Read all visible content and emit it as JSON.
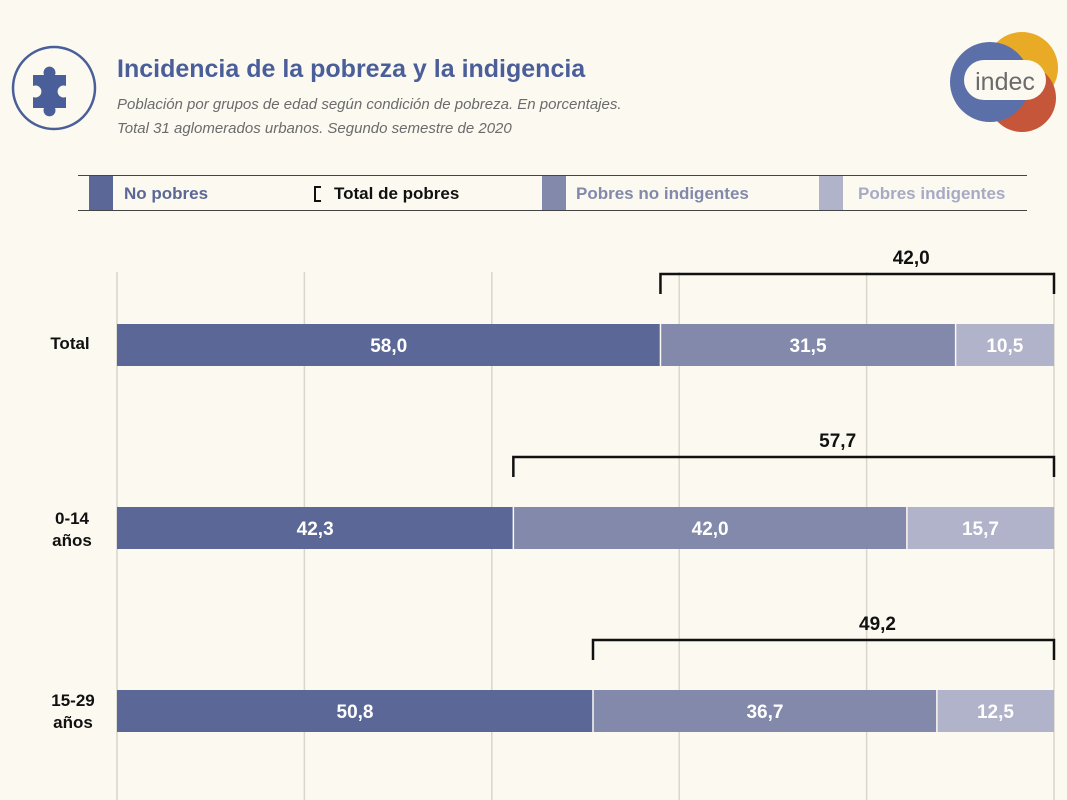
{
  "header": {
    "title": "Incidencia de la pobreza y la indigencia",
    "subtitle_lines": [
      "Población por grupos de edad según condición de pobreza. En porcentajes.",
      "Total 31 aglomerados urbanos. Segundo semestre de 2020"
    ],
    "logo_text": "indec",
    "header_icon": "puzzle-piece-icon"
  },
  "colors": {
    "no_pobres": "#5b6897",
    "pobres_no_indigentes": "#8289ab",
    "pobres_indigentes": "#b0b3c9",
    "title": "#4a5f9a",
    "logo_blue": "#5b6fa8",
    "logo_yellow": "#e9ab26",
    "logo_red": "#c5563a"
  },
  "legend": {
    "no_pobres": "No pobres",
    "total_pobres": "Total de pobres",
    "pobres_no_indigentes": "Pobres no indigentes",
    "pobres_indigentes": "Pobres indigentes"
  },
  "chart_data": {
    "type": "bar",
    "orientation": "horizontal",
    "stacked": true,
    "categories": [
      "Total",
      "0-14 años",
      "15-29 años"
    ],
    "category_label_lines": [
      [
        "Total"
      ],
      [
        "0-14",
        "años"
      ],
      [
        "15-29",
        "años"
      ]
    ],
    "series": [
      {
        "name": "No pobres",
        "values": [
          58.0,
          42.3,
          50.8
        ],
        "labels": [
          "58,0",
          "42,3",
          "50,8"
        ]
      },
      {
        "name": "Pobres no indigentes",
        "values": [
          31.5,
          42.0,
          36.7
        ],
        "labels": [
          "31,5",
          "42,0",
          "36,7"
        ]
      },
      {
        "name": "Pobres indigentes",
        "values": [
          10.5,
          15.7,
          12.5
        ],
        "labels": [
          "10,5",
          "15,7",
          "12,5"
        ]
      }
    ],
    "totals": {
      "name": "Total de pobres",
      "values": [
        42.0,
        57.7,
        49.2
      ],
      "labels": [
        "42,0",
        "57,7",
        "49,2"
      ]
    },
    "xlim": [
      0,
      100
    ],
    "grid": true,
    "legend_position": "top"
  }
}
